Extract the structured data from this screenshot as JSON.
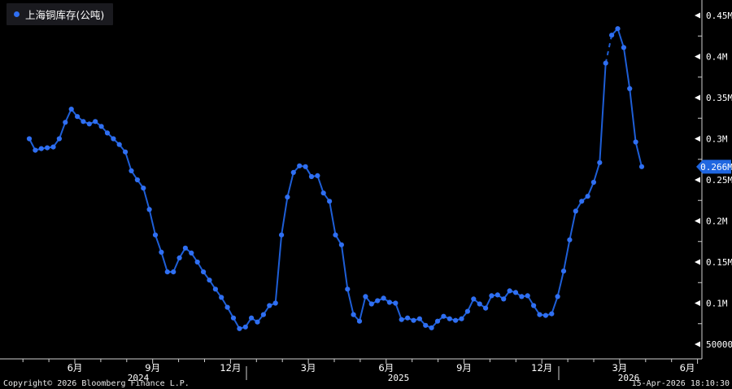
{
  "legend": {
    "label": "上海铜库存(公吨)"
  },
  "footer": {
    "copyright": "Copyright© 2026 Bloomberg Finance L.P.",
    "timestamp": "15-Apr-2026 18:10:30"
  },
  "colors": {
    "background": "#000000",
    "line": "#1e5ed6",
    "marker": "#2f6ff2",
    "axis": "#cfcfcf",
    "text": "#ffffff",
    "legend_bg": "#1a1a1f",
    "badge_bg": "#1f66e0",
    "badge_text": "#ffffff"
  },
  "chart_data": {
    "type": "line",
    "title": "上海铜库存(公吨)",
    "unit": "公吨 (metric tons)",
    "frequency": "weekly",
    "x_start": "2024-04",
    "x_end": "2026-04",
    "legend_position": "top-left",
    "grid": "off",
    "y_axis": {
      "side": "right",
      "min": 50000,
      "max": 450000,
      "ticks": [
        {
          "label": "0.45M",
          "value": 450000
        },
        {
          "label": "0.4M",
          "value": 400000
        },
        {
          "label": "0.35M",
          "value": 350000
        },
        {
          "label": "0.3M",
          "value": 300000
        },
        {
          "label": "0.25M",
          "value": 250000
        },
        {
          "label": "0.2M",
          "value": 200000
        },
        {
          "label": "0.15M",
          "value": 150000
        },
        {
          "label": "0.1M",
          "value": 100000
        },
        {
          "label": "50000",
          "value": 50000
        }
      ]
    },
    "x_axis": {
      "month_labels": [
        "6月",
        "9月",
        "12月",
        "3月",
        "6月",
        "9月",
        "12月",
        "3月",
        "6月"
      ],
      "years": [
        "2024",
        "2025",
        "2026"
      ]
    },
    "last_value_label": "0.266M",
    "dashed_segment": {
      "from_index": 96,
      "to_index": 97
    },
    "values": [
      300000,
      286000,
      288000,
      289000,
      290000,
      300000,
      320000,
      336000,
      327000,
      321000,
      318000,
      321000,
      315000,
      307000,
      300000,
      293000,
      284000,
      261000,
      250000,
      240000,
      214000,
      183000,
      162000,
      138000,
      138000,
      155000,
      167000,
      161000,
      150000,
      138000,
      128000,
      117000,
      107000,
      95000,
      82000,
      69000,
      71000,
      82000,
      77000,
      86000,
      97000,
      100000,
      183000,
      229000,
      259000,
      267000,
      266000,
      254000,
      255000,
      234000,
      224000,
      183000,
      171000,
      117000,
      86000,
      78000,
      108000,
      99000,
      103000,
      106000,
      101000,
      100000,
      80000,
      82000,
      79000,
      81000,
      73000,
      70000,
      78000,
      84000,
      81000,
      79000,
      81000,
      90000,
      105000,
      99000,
      94000,
      109000,
      110000,
      105000,
      115000,
      113000,
      108000,
      109000,
      97000,
      86000,
      85000,
      87000,
      108000,
      139000,
      177000,
      212000,
      224000,
      230000,
      247000,
      271000,
      392000,
      426000,
      434000,
      411000,
      361000,
      296000,
      266000
    ]
  }
}
